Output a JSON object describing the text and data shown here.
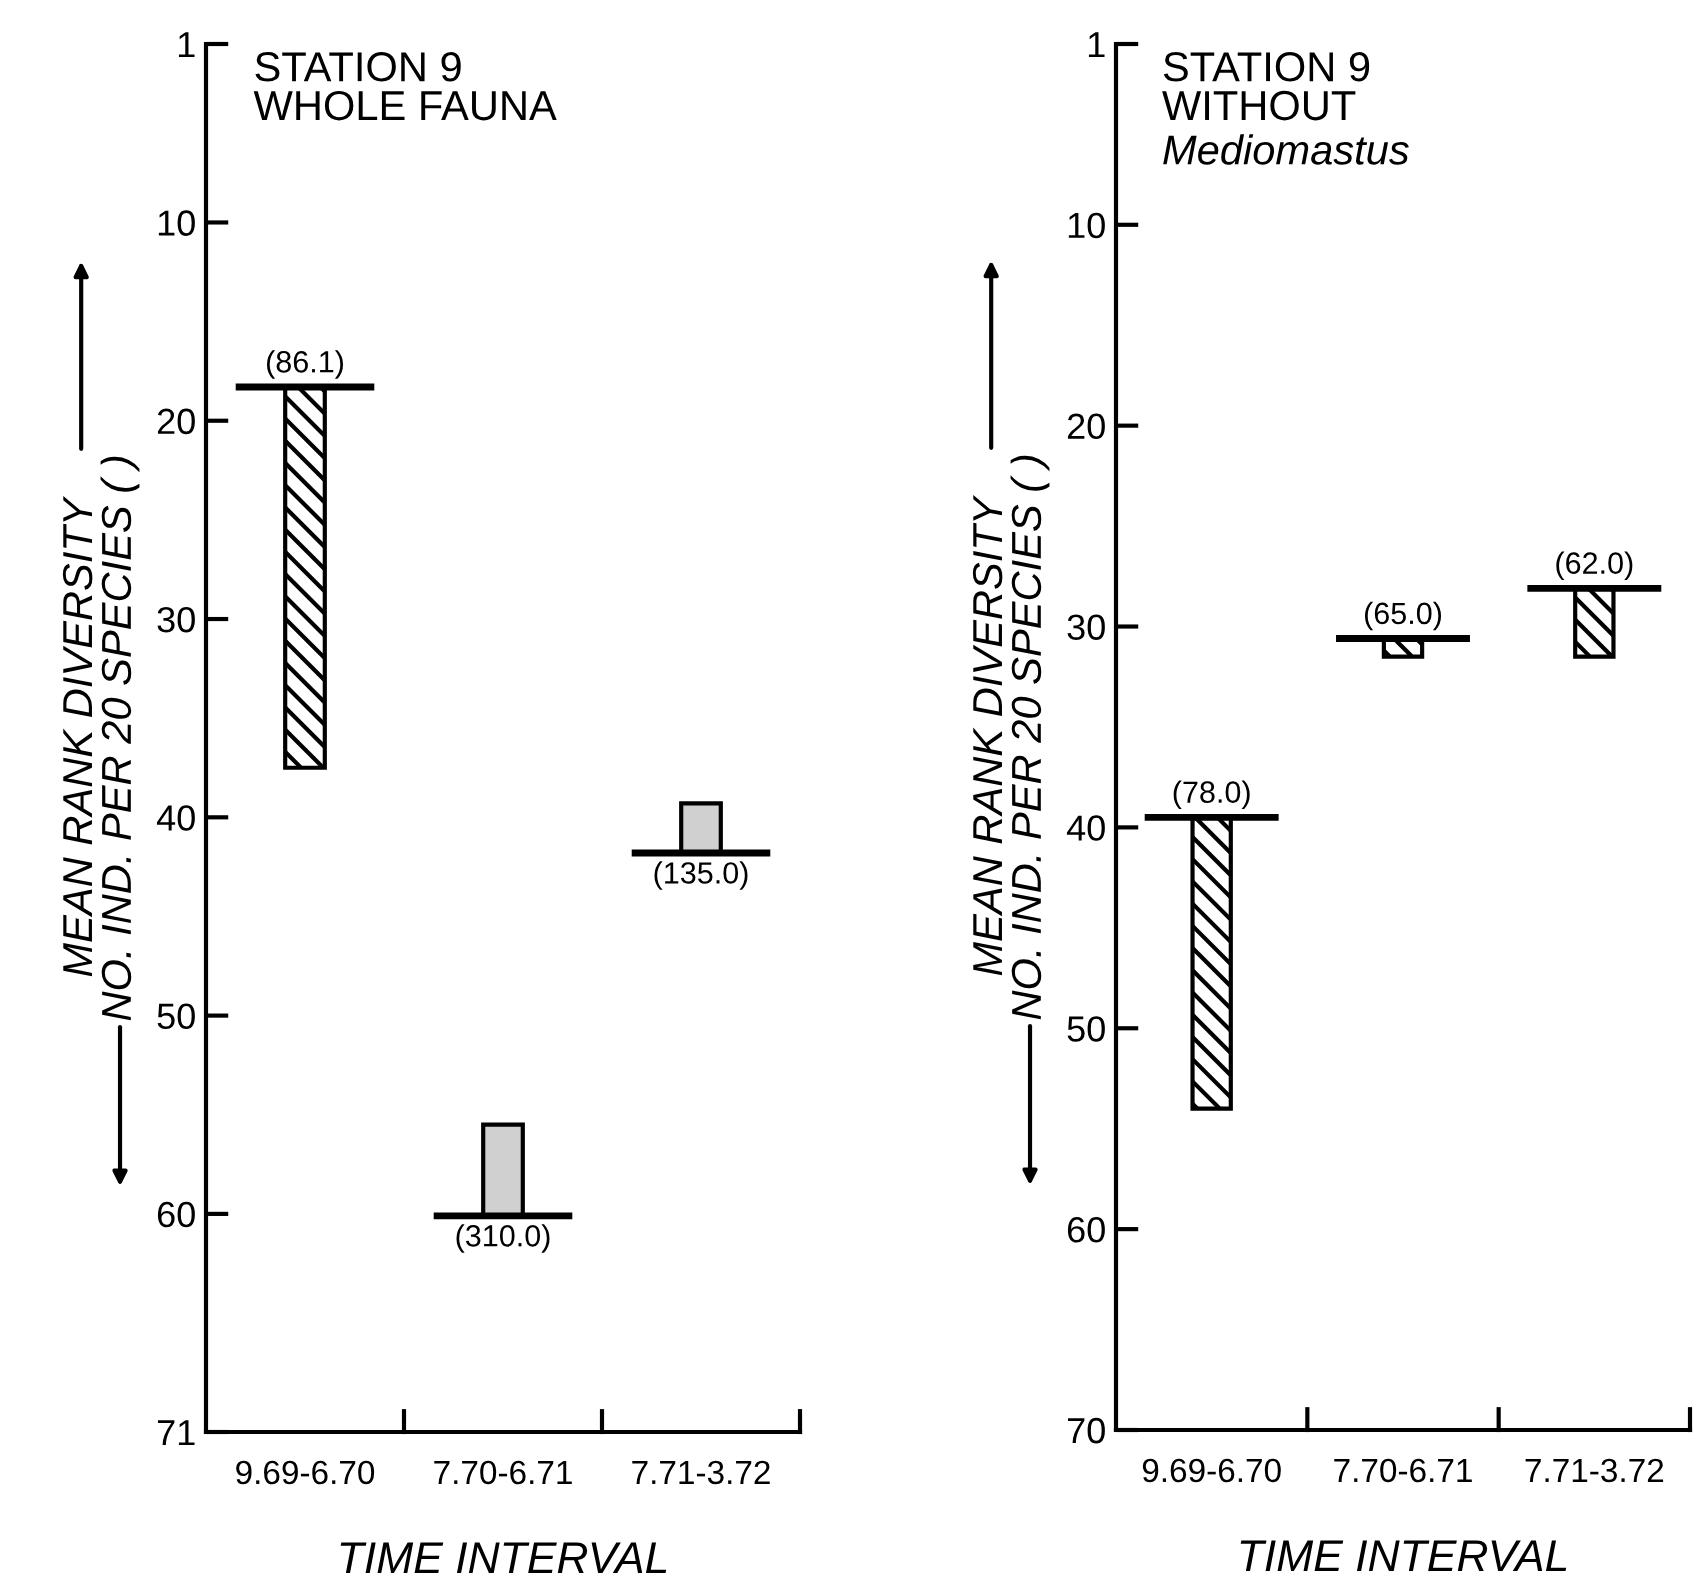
{
  "chart_data": [
    {
      "type": "bar",
      "title": "STATION 9\nWHOLE FAUNA",
      "xlabel": "TIME INTERVAL",
      "ylabel": "MEAN RANK DIVERSITY\nNO. IND. PER 20 SPECIES ( )",
      "categories": [
        "9.69-6.70",
        "7.70-6.71",
        "7.71-3.72"
      ],
      "base": [
        18.3,
        60.1,
        41.8
      ],
      "values": [
        19.2,
        -4.6,
        -2.5
      ],
      "colors": [
        "#000000",
        "#d0d0d0",
        "#d0d0d0"
      ],
      "annotations": [
        {
          "text": "(86.1)",
          "x": "9.69-6.70",
          "y": 18.3
        },
        {
          "text": "(310.0)",
          "x": "7.70-6.71",
          "y": 60.1
        },
        {
          "text": "(135.0)",
          "x": "7.71-3.72",
          "y": 41.8
        }
      ],
      "ylim": [
        71,
        1
      ],
      "yticks": [
        1,
        10,
        20,
        30,
        40,
        50,
        60,
        71
      ],
      "grid": false,
      "legend": false
    },
    {
      "type": "bar",
      "title": "STATION 9\nWITHOUT",
      "subtitle": "Mediomastus",
      "xlabel": "TIME INTERVAL",
      "ylabel": "MEAN RANK DIVERSITY\nNO. IND. PER 20 SPECIES ( )",
      "categories": [
        "9.69-6.70",
        "7.70-6.71",
        "7.71-3.72"
      ],
      "base": [
        39.5,
        30.6,
        28.1
      ],
      "values": [
        14.5,
        0.9,
        3.4
      ],
      "colors": [
        "#000000",
        "#000000",
        "#000000"
      ],
      "annotations": [
        {
          "text": "(78.0)",
          "x": "9.69-6.70",
          "y": 39.5
        },
        {
          "text": "(65.0)",
          "x": "7.70-6.71",
          "y": 30.6
        },
        {
          "text": "(62.0)",
          "x": "7.71-3.72",
          "y": 28.1
        }
      ],
      "ylim": [
        70,
        1
      ],
      "yticks": [
        1,
        10,
        20,
        30,
        40,
        50,
        60,
        70
      ],
      "grid": false,
      "legend": false
    }
  ]
}
